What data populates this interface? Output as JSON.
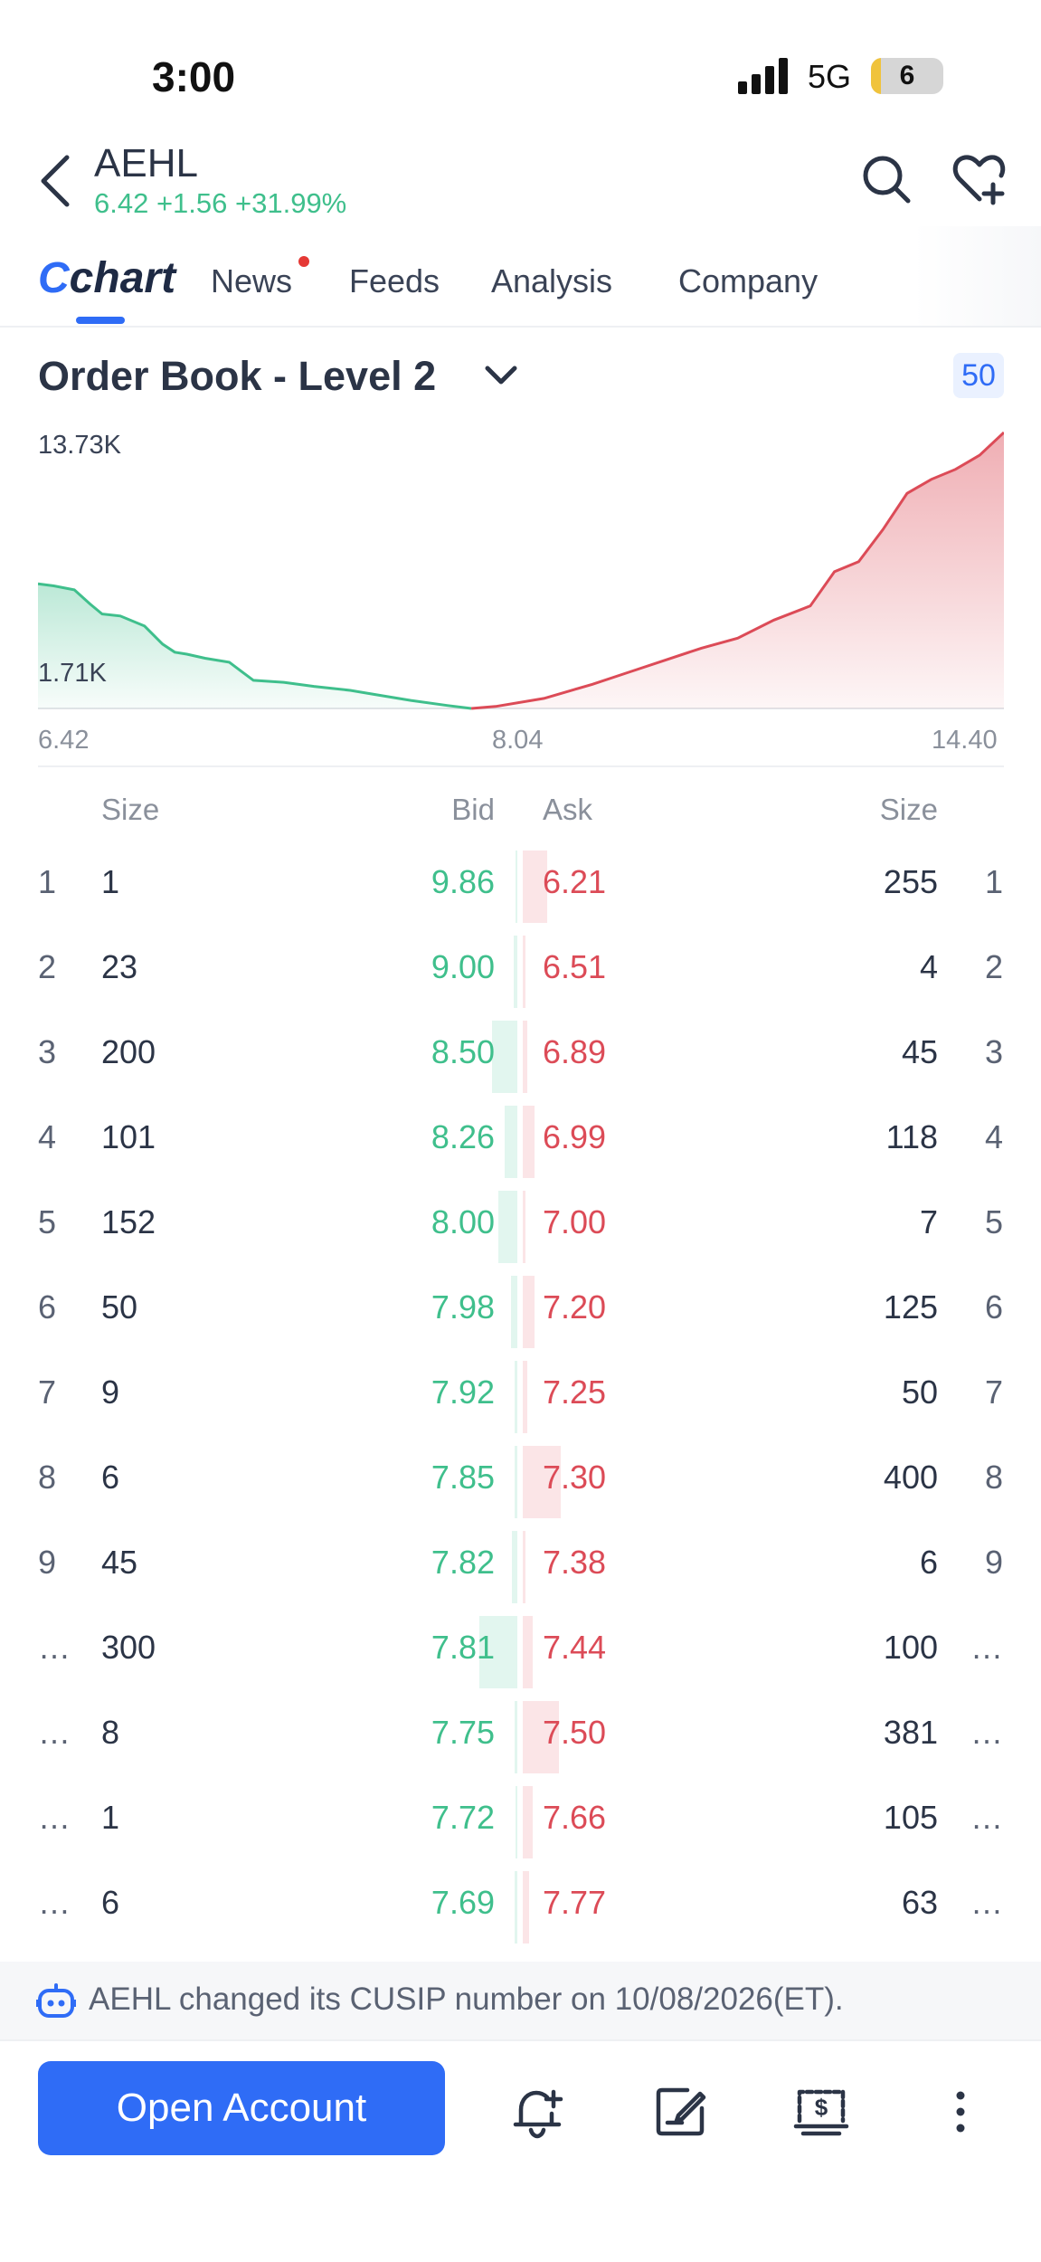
{
  "status_bar": {
    "time": "3:00",
    "network": "5G",
    "battery": "6"
  },
  "header": {
    "ticker": "AEHL",
    "quote": "6.42 +1.56 +31.99%",
    "icons": [
      "back-chevron-icon",
      "search-icon",
      "heart-plus-icon"
    ]
  },
  "tabs": [
    {
      "label": "chart",
      "lead": "C",
      "active": true
    },
    {
      "label": "News",
      "has_dot": true
    },
    {
      "label": "Feeds"
    },
    {
      "label": "Analysis"
    },
    {
      "label": "Company"
    }
  ],
  "order_book": {
    "title": "Order Book - Level 2",
    "depth": "50",
    "columns": {
      "bid_size": "Size",
      "bid": "Bid",
      "ask": "Ask",
      "ask_size": "Size"
    },
    "rows": [
      {
        "idx": "1",
        "bid_size": "1",
        "bid": "9.86",
        "ask": "6.21",
        "ask_size": "255",
        "bid_share": 0.0,
        "ask_share": 0.64
      },
      {
        "idx": "2",
        "bid_size": "23",
        "bid": "9.00",
        "ask": "6.51",
        "ask_size": "4",
        "bid_share": 0.1,
        "ask_share": 0.03
      },
      {
        "idx": "3",
        "bid_size": "200",
        "bid": "8.50",
        "ask": "6.89",
        "ask_size": "45",
        "bid_share": 0.67,
        "ask_share": 0.11
      },
      {
        "idx": "4",
        "bid_size": "101",
        "bid": "8.26",
        "ask": "6.99",
        "ask_size": "118",
        "bid_share": 0.34,
        "ask_share": 0.3
      },
      {
        "idx": "5",
        "bid_size": "152",
        "bid": "8.00",
        "ask": "7.00",
        "ask_size": "7",
        "bid_share": 0.51,
        "ask_share": 0.02
      },
      {
        "idx": "6",
        "bid_size": "50",
        "bid": "7.98",
        "ask": "7.20",
        "ask_size": "125",
        "bid_share": 0.17,
        "ask_share": 0.31
      },
      {
        "idx": "7",
        "bid_size": "9",
        "bid": "7.92",
        "ask": "7.25",
        "ask_size": "50",
        "bid_share": 0.03,
        "ask_share": 0.13
      },
      {
        "idx": "8",
        "bid_size": "6",
        "bid": "7.85",
        "ask": "7.30",
        "ask_size": "400",
        "bid_share": 0.02,
        "ask_share": 1.0
      },
      {
        "idx": "9",
        "bid_size": "45",
        "bid": "7.82",
        "ask": "7.38",
        "ask_size": "6",
        "bid_share": 0.15,
        "ask_share": 0.02
      },
      {
        "idx": "…",
        "bid_size": "300",
        "bid": "7.81",
        "ask": "7.44",
        "ask_size": "100",
        "bid_share": 1.0,
        "ask_share": 0.25
      },
      {
        "idx": "…",
        "bid_size": "8",
        "bid": "7.75",
        "ask": "7.50",
        "ask_size": "381",
        "bid_share": 0.03,
        "ask_share": 0.95
      },
      {
        "idx": "…",
        "bid_size": "1",
        "bid": "7.72",
        "ask": "7.66",
        "ask_size": "105",
        "bid_share": 0.0,
        "ask_share": 0.26
      },
      {
        "idx": "…",
        "bid_size": "6",
        "bid": "7.69",
        "ask": "7.77",
        "ask_size": "63",
        "bid_share": 0.02,
        "ask_share": 0.16
      }
    ]
  },
  "chart_data": {
    "type": "area",
    "title": "",
    "xlabel": "",
    "ylabel": "",
    "x_ticks": [
      "6.42",
      "8.04",
      "14.40"
    ],
    "y_labels": [
      "13.73K",
      "1.71K"
    ],
    "xlim": [
      6.42,
      14.4
    ],
    "ylim": [
      0,
      13730
    ],
    "series": [
      {
        "side": "bid",
        "color": "#3fbf8c",
        "x": [
          6.42,
          6.55,
          6.72,
          6.85,
          6.95,
          7.1,
          7.3,
          7.45,
          7.55,
          7.65,
          7.8,
          8.0,
          8.1,
          8.2,
          8.45,
          8.7,
          9.0,
          9.2,
          9.5,
          9.8,
          10.0
        ],
        "y": [
          6200,
          6100,
          5900,
          5200,
          4700,
          4600,
          4100,
          3200,
          2800,
          2700,
          2500,
          2300,
          1850,
          1400,
          1300,
          1100,
          900,
          700,
          400,
          150,
          0
        ]
      },
      {
        "side": "ask",
        "color": "#dc4b57",
        "x": [
          10.0,
          10.2,
          10.6,
          11.0,
          11.3,
          11.6,
          11.9,
          12.2,
          12.5,
          12.8,
          13.0,
          13.2,
          13.4,
          13.6,
          13.8,
          14.0,
          14.2,
          14.4
        ],
        "y": [
          0,
          100,
          500,
          1200,
          1800,
          2400,
          3000,
          3500,
          4400,
          5100,
          6800,
          7300,
          8900,
          10700,
          11400,
          11900,
          12600,
          13730
        ]
      }
    ],
    "grid": false
  },
  "notice": {
    "text": "AEHL changed its CUSIP number on 10/08/2026(ET)."
  },
  "bottom_bar": {
    "open_account": "Open Account",
    "icons": [
      "alert-add-icon",
      "note-edit-icon",
      "trade-cash-icon",
      "more-vertical-icon"
    ]
  }
}
